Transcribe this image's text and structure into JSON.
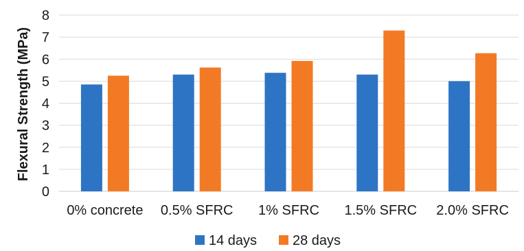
{
  "chart_data": {
    "type": "bar",
    "title": "",
    "xlabel": "",
    "ylabel": "Flexural Strength (MPa)",
    "ylim": [
      0,
      8
    ],
    "yticks": [
      0,
      1,
      2,
      3,
      4,
      5,
      6,
      7,
      8
    ],
    "grid": true,
    "legend_position": "bottom",
    "categories": [
      "0% concrete",
      "0.5% SFRC",
      "1% SFRC",
      "1.5% SFRC",
      "2.0% SFRC"
    ],
    "series": [
      {
        "name": "14 days",
        "color": "#2e74c4",
        "values": [
          4.85,
          5.3,
          5.38,
          5.3,
          5.0
        ]
      },
      {
        "name": "28 days",
        "color": "#f37a24",
        "values": [
          5.25,
          5.62,
          5.92,
          7.3,
          6.27
        ]
      }
    ]
  }
}
